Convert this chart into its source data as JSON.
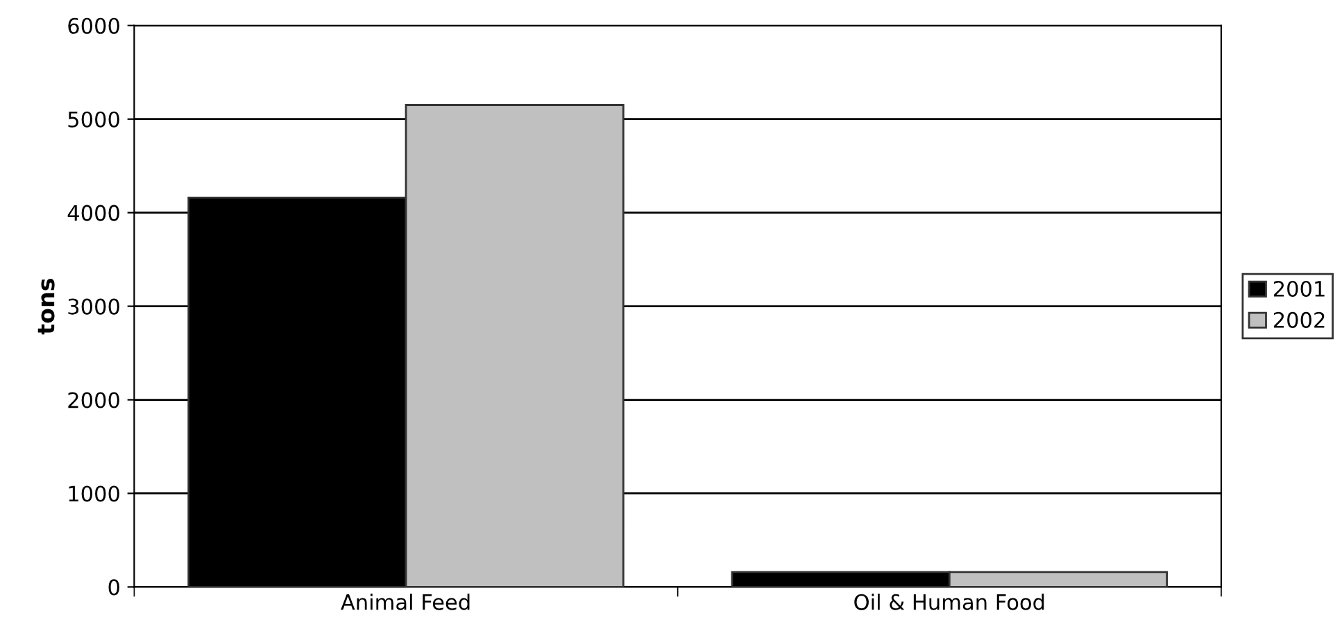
{
  "chart_data": {
    "type": "bar",
    "ylabel": "tons",
    "categories": [
      "Animal Feed",
      "Oil & Human Food"
    ],
    "series": [
      {
        "name": "2001",
        "color": "#000000",
        "values": [
          4160,
          160
        ]
      },
      {
        "name": "2002",
        "color": "#c0c0c0",
        "values": [
          5150,
          160
        ]
      }
    ],
    "ylim": [
      0,
      6000
    ],
    "yticks": [
      0,
      1000,
      2000,
      3000,
      4000,
      5000,
      6000
    ],
    "grid": "y",
    "legend": "right"
  }
}
